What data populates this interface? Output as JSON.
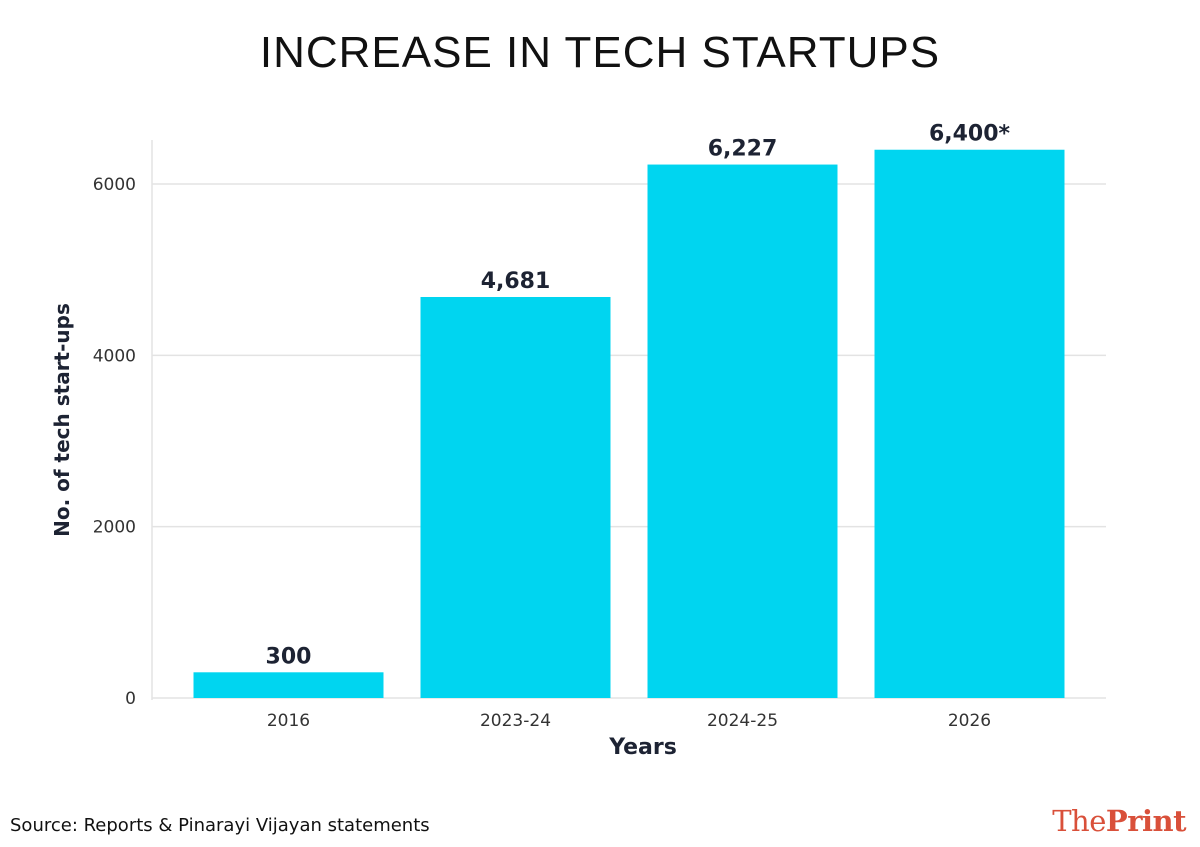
{
  "chart_data": {
    "type": "bar",
    "title": "INCREASE IN TECH STARTUPS",
    "xlabel": "Years",
    "ylabel": "No. of tech start-ups",
    "categories": [
      "2016",
      "2023-24",
      "2024-25",
      "2026"
    ],
    "values": [
      300,
      4681,
      6227,
      6400
    ],
    "data_labels": [
      "300",
      "4,681",
      "6,227",
      "6,400*"
    ],
    "y_ticks": [
      0,
      2000,
      4000,
      6000
    ],
    "y_tick_labels": [
      "0",
      "2000",
      "4000",
      "6000"
    ],
    "ylim": [
      0,
      6650
    ],
    "grid": true,
    "bar_color": "#00d5f0"
  },
  "footer": {
    "source": "Source: Reports & Pinarayi Vijayan statements"
  },
  "logo": {
    "the": "The",
    "print": "Print",
    "color": "#d9503a"
  }
}
